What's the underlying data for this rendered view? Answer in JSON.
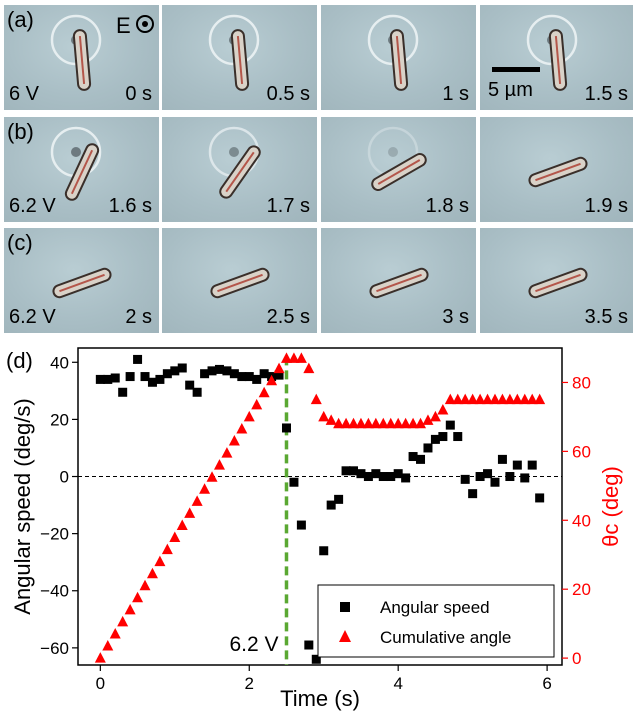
{
  "panels": {
    "a": {
      "letter": "(a)",
      "field_label": "E",
      "voltage": "6 V",
      "times": [
        "0 s",
        "0.5 s",
        "1 s",
        "1.5 s"
      ],
      "scale_bar": "5 µm"
    },
    "b": {
      "letter": "(b)",
      "voltage": "6.2 V",
      "times": [
        "1.6 s",
        "1.7 s",
        "1.8 s",
        "1.9 s"
      ]
    },
    "c": {
      "letter": "(c)",
      "voltage": "6.2 V",
      "times": [
        "2 s",
        "2.5 s",
        "3 s",
        "3.5 s"
      ]
    }
  },
  "chart_data": {
    "panel_letter": "(d)",
    "type": "scatter",
    "xlabel": "Time (s)",
    "ylabel_left": "Angular speed (deg/s)",
    "ylabel_right": "θc (deg)",
    "xlim": [
      -0.3,
      6.2
    ],
    "ylim_left": [
      -66,
      45
    ],
    "ylim_right": [
      -2,
      90
    ],
    "x_ticks": [
      0,
      2,
      4,
      6
    ],
    "y_ticks_left": [
      -60,
      -40,
      -20,
      0,
      20,
      40
    ],
    "y_ticks_right": [
      0,
      20,
      40,
      60,
      80
    ],
    "zero_line": 0,
    "vline": {
      "x": 2.5,
      "label": "6.2 V",
      "color": "#5aa832"
    },
    "legend_position": "bottom-right",
    "series": [
      {
        "name": "Angular speed",
        "axis": "left",
        "marker": "square",
        "color": "#000000",
        "x": [
          0,
          0.1,
          0.2,
          0.3,
          0.4,
          0.5,
          0.6,
          0.7,
          0.8,
          0.9,
          1.0,
          1.1,
          1.2,
          1.3,
          1.4,
          1.5,
          1.6,
          1.7,
          1.8,
          1.9,
          2.0,
          2.1,
          2.2,
          2.3,
          2.4,
          2.5,
          2.6,
          2.7,
          2.8,
          2.9,
          3.0,
          3.1,
          3.2,
          3.3,
          3.4,
          3.5,
          3.6,
          3.7,
          3.8,
          3.9,
          4.0,
          4.1,
          4.2,
          4.3,
          4.4,
          4.5,
          4.6,
          4.7,
          4.8,
          4.9,
          5.0,
          5.1,
          5.2,
          5.3,
          5.4,
          5.5,
          5.6,
          5.7,
          5.8,
          5.9
        ],
        "y": [
          34,
          34,
          34.5,
          29.5,
          35,
          41,
          35,
          33,
          34,
          36,
          37,
          38,
          32,
          29.5,
          36,
          37,
          37.5,
          37,
          36,
          35,
          35,
          34,
          36,
          35,
          35.5,
          17,
          -2,
          -17,
          -59,
          -64,
          -26,
          -10,
          -8,
          2,
          2,
          1,
          0,
          1,
          0,
          0,
          1,
          -0.5,
          7,
          6,
          10,
          13,
          14,
          18,
          14,
          -1,
          -6,
          0,
          1,
          -2,
          6,
          0,
          4,
          -0.5,
          4,
          -7.5
        ]
      },
      {
        "name": "Cumulative angle",
        "axis": "right",
        "marker": "triangle",
        "color": "#ff0000",
        "x": [
          0,
          0.1,
          0.2,
          0.3,
          0.4,
          0.5,
          0.6,
          0.7,
          0.8,
          0.9,
          1.0,
          1.1,
          1.2,
          1.3,
          1.4,
          1.5,
          1.6,
          1.7,
          1.8,
          1.9,
          2.0,
          2.1,
          2.2,
          2.3,
          2.4,
          2.5,
          2.6,
          2.7,
          2.8,
          2.9,
          3.0,
          3.1,
          3.2,
          3.3,
          3.4,
          3.5,
          3.6,
          3.7,
          3.8,
          3.9,
          4.0,
          4.1,
          4.2,
          4.3,
          4.4,
          4.5,
          4.6,
          4.7,
          4.8,
          4.9,
          5.0,
          5.1,
          5.2,
          5.3,
          5.4,
          5.5,
          5.6,
          5.7,
          5.8,
          5.9
        ],
        "y": [
          0,
          3.5,
          7,
          10.5,
          14,
          17.5,
          21,
          24.5,
          28,
          31.5,
          35,
          38.5,
          42,
          45.5,
          49,
          52.5,
          56,
          59.5,
          63,
          66.5,
          70,
          73.5,
          77,
          80.5,
          84,
          87,
          87,
          87,
          84,
          75,
          70,
          69,
          68,
          68,
          68,
          68,
          68,
          68,
          68,
          68,
          68,
          68,
          68,
          68,
          69,
          70,
          72,
          75,
          75,
          75,
          75,
          75,
          75,
          75,
          75,
          75,
          75,
          75,
          75,
          75
        ]
      }
    ]
  }
}
